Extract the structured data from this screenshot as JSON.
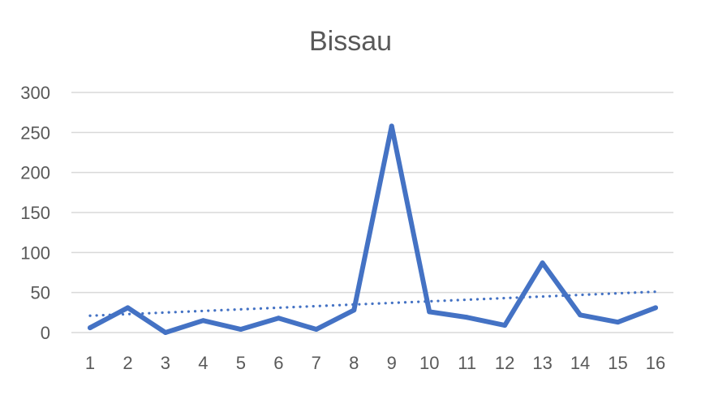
{
  "chart_data": {
    "type": "line",
    "title": "Bissau",
    "xlabel": "",
    "ylabel": "",
    "categories": [
      "1",
      "2",
      "3",
      "4",
      "5",
      "6",
      "7",
      "8",
      "9",
      "10",
      "11",
      "12",
      "13",
      "14",
      "15",
      "16"
    ],
    "series": [
      {
        "values": [
          6,
          31,
          0,
          15,
          4,
          18,
          4,
          28,
          258,
          26,
          19,
          9,
          87,
          22,
          13,
          31
        ],
        "color": "#4472c4"
      }
    ],
    "trendline": {
      "kind": "linear",
      "style": "dotted",
      "color": "#4472c4",
      "start_value": 21,
      "end_value": 51
    },
    "ylim": [
      0,
      300
    ],
    "yticks": [
      0,
      50,
      100,
      150,
      200,
      250,
      300
    ],
    "grid": true,
    "legend": "none"
  }
}
